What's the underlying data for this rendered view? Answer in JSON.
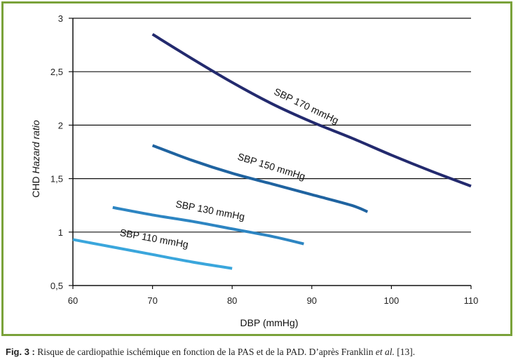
{
  "chart_data": {
    "type": "line",
    "xlabel": "DBP (mmHg)",
    "ylabel": "CHD Hazard ratio",
    "xlim": [
      60,
      110
    ],
    "ylim": [
      0.5,
      3
    ],
    "x_ticks": [
      "60",
      "70",
      "80",
      "90",
      "100",
      "110"
    ],
    "y_ticks": [
      "0,5",
      "1",
      "1,5",
      "2",
      "2,5",
      "3"
    ],
    "grid": "horizontal",
    "series": [
      {
        "name": "SBP 170 mmHg",
        "color": "#232a6e",
        "points": [
          [
            70,
            2.85
          ],
          [
            75,
            2.62
          ],
          [
            80,
            2.4
          ],
          [
            85,
            2.2
          ],
          [
            90,
            2.03
          ],
          [
            95,
            1.88
          ],
          [
            100,
            1.72
          ],
          [
            105,
            1.57
          ],
          [
            110,
            1.43
          ]
        ]
      },
      {
        "name": "SBP 150 mmHg",
        "color": "#1f63a0",
        "points": [
          [
            70,
            1.81
          ],
          [
            75,
            1.67
          ],
          [
            80,
            1.55
          ],
          [
            85,
            1.45
          ],
          [
            90,
            1.35
          ],
          [
            95,
            1.25
          ],
          [
            97,
            1.19
          ]
        ]
      },
      {
        "name": "SBP 130 mmHg",
        "color": "#2d85c2",
        "points": [
          [
            65,
            1.23
          ],
          [
            70,
            1.16
          ],
          [
            75,
            1.1
          ],
          [
            80,
            1.03
          ],
          [
            85,
            0.96
          ],
          [
            89,
            0.89
          ]
        ]
      },
      {
        "name": "SBP 110 mmHg",
        "color": "#3aa6dc",
        "points": [
          [
            60,
            0.93
          ],
          [
            65,
            0.86
          ],
          [
            70,
            0.79
          ],
          [
            75,
            0.72
          ],
          [
            80,
            0.66
          ]
        ]
      }
    ]
  },
  "caption": {
    "fig": "Fig. 3 :",
    "text": " Risque de cardiopathie ischémique en fonction de la PAS et de la PAD. D’après Franklin ",
    "etal": "et al.",
    "ref": " [13]."
  }
}
